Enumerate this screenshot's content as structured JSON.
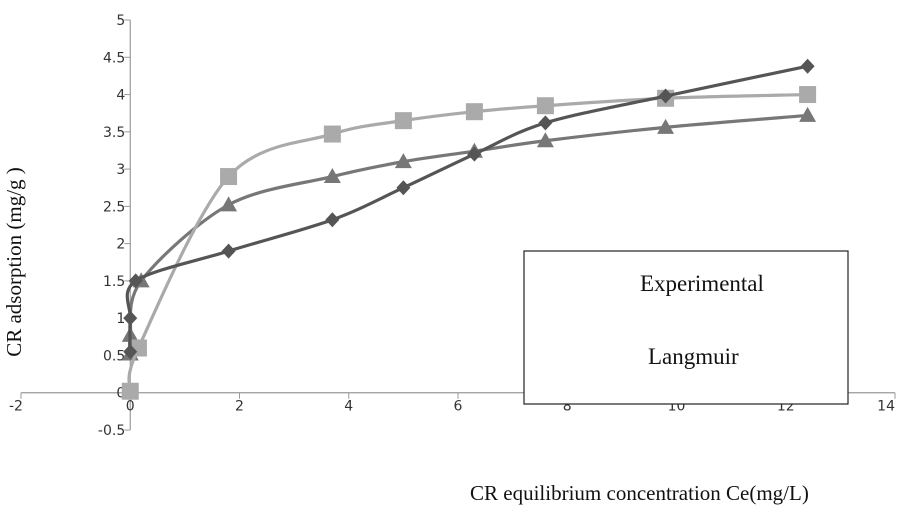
{
  "chart_data": {
    "type": "line",
    "xlabel": "CR equilibrium concentration Ce(mg/L)",
    "ylabel": "CR adsorption (mg/g )",
    "xlim": [
      -2,
      14
    ],
    "ylim": [
      -0.5,
      5
    ],
    "x_ticks": [
      "-2",
      "0",
      "2",
      "4",
      "6",
      "8",
      "10",
      "12",
      "14"
    ],
    "y_ticks": [
      "-0.5",
      "0",
      "0.5",
      "1",
      "1.5",
      "2",
      "2.5",
      "3",
      "3.5",
      "4",
      "4.5",
      "5"
    ],
    "grid": false,
    "legend_entries": [
      "Experimental",
      "Langmuir"
    ],
    "series": [
      {
        "name": "Experimental",
        "marker": "diamond",
        "color": "#555555",
        "x": [
          0,
          0,
          0.1,
          1.8,
          3.7,
          5.0,
          6.3,
          7.6,
          9.8,
          12.4
        ],
        "y": [
          0.55,
          1.0,
          1.5,
          1.9,
          2.32,
          2.75,
          3.2,
          3.62,
          3.98,
          4.38
        ]
      },
      {
        "name": "Langmuir",
        "marker": "square",
        "color": "#aaaaaa",
        "x": [
          0,
          0.15,
          1.8,
          3.7,
          5.0,
          6.3,
          7.6,
          9.8,
          12.4
        ],
        "y": [
          0.02,
          0.6,
          2.9,
          3.47,
          3.65,
          3.77,
          3.85,
          3.95,
          4.0
        ]
      },
      {
        "name": "",
        "marker": "triangle",
        "color": "#777777",
        "x": [
          0,
          0,
          0.2,
          1.8,
          3.7,
          5.0,
          6.3,
          7.6,
          9.8,
          12.4
        ],
        "y": [
          0.52,
          0.77,
          1.5,
          2.52,
          2.9,
          3.1,
          3.24,
          3.38,
          3.56,
          3.72
        ]
      }
    ]
  }
}
